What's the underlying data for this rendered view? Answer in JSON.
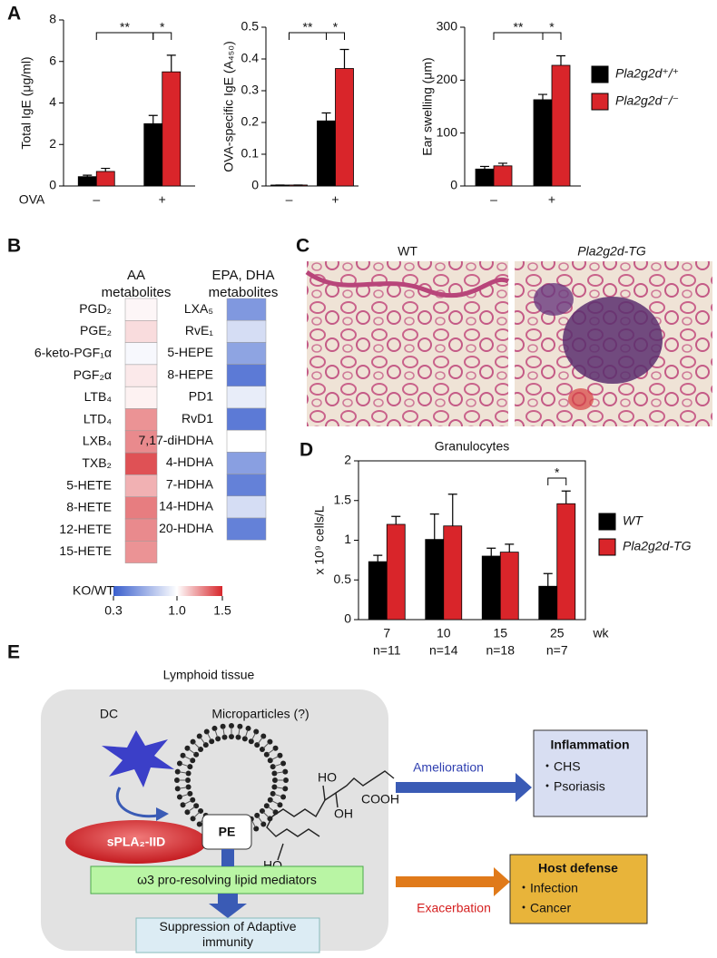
{
  "chart_data": [
    {
      "type": "bar",
      "ylabel": "Total IgE (μg/ml)",
      "xlabel": "OVA",
      "categories": [
        "–",
        "+"
      ],
      "series": [
        {
          "name": "Pla2g2d⁺/⁺",
          "color": "#000000",
          "values": [
            0.45,
            3.0
          ],
          "errors": [
            0.07,
            0.4
          ]
        },
        {
          "name": "Pla2g2d⁻/⁻",
          "color": "#d9252a",
          "values": [
            0.7,
            5.5
          ],
          "errors": [
            0.15,
            0.8
          ]
        }
      ],
      "ylim": [
        0,
        8
      ],
      "yticks": [
        0,
        2,
        4,
        6,
        8
      ],
      "significance": [
        "**",
        "*"
      ]
    },
    {
      "type": "bar",
      "ylabel": "OVA-specific IgE (A₄₅₀)",
      "categories": [
        "–",
        "+"
      ],
      "series": [
        {
          "name": "Pla2g2d⁺/⁺",
          "color": "#000000",
          "values": [
            0.003,
            0.205
          ],
          "errors": [
            0,
            0.025
          ]
        },
        {
          "name": "Pla2g2d⁻/⁻",
          "color": "#d9252a",
          "values": [
            0.003,
            0.37
          ],
          "errors": [
            0,
            0.06
          ]
        }
      ],
      "ylim": [
        0,
        0.5
      ],
      "yticks": [
        0,
        0.1,
        0.2,
        0.3,
        0.4,
        0.5
      ],
      "significance": [
        "**",
        "*"
      ]
    },
    {
      "type": "bar",
      "ylabel": "Ear swelling (μm)",
      "categories": [
        "–",
        "+"
      ],
      "series": [
        {
          "name": "Pla2g2d⁺/⁺",
          "color": "#000000",
          "values": [
            32,
            163
          ],
          "errors": [
            5,
            10
          ]
        },
        {
          "name": "Pla2g2d⁻/⁻",
          "color": "#d9252a",
          "values": [
            38,
            228
          ],
          "errors": [
            5,
            18
          ]
        }
      ],
      "ylim": [
        0,
        300
      ],
      "yticks": [
        0,
        100,
        200,
        300
      ],
      "significance": [
        "**",
        "*"
      ]
    },
    {
      "type": "heatmap",
      "title": "AA metabolites",
      "categories": [
        "PGD₂",
        "PGE₂",
        "6-keto-PGF₁α",
        "PGF₂α",
        "LTB₄",
        "LTD₄",
        "LXB₄",
        "TXB₂",
        "5-HETE",
        "8-HETE",
        "12-HETE",
        "15-HETE"
      ],
      "values": [
        1.02,
        1.08,
        0.97,
        1.05,
        1.03,
        1.25,
        1.27,
        1.4,
        1.18,
        1.3,
        1.27,
        1.25
      ],
      "colorbar": {
        "label": "KO/WT",
        "ticks": [
          0.3,
          {
            "value": 1,
            "label": "1.0"
          },
          1.5
        ],
        "colors": [
          "#3a5fcd",
          "#ffffff",
          "#d7262b"
        ]
      }
    },
    {
      "type": "heatmap",
      "title": "EPA, DHA metabolites",
      "categories": [
        "LXA₅",
        "RvE₁",
        "5-HEPE",
        "8-HEPE",
        "PD1",
        "RvD1",
        "7,17-diHDHA",
        "4-HDHA",
        "7-HDHA",
        "14-HDHA",
        "20-HDHA"
      ],
      "values": [
        0.55,
        0.85,
        0.6,
        0.42,
        0.92,
        0.42,
        1.0,
        0.58,
        0.45,
        0.85,
        0.45
      ]
    },
    {
      "type": "bar",
      "title": "Granulocytes",
      "ylabel": "x 10⁹ cells/L",
      "xlabel": "wk",
      "categories": [
        "7",
        "10",
        "15",
        "25"
      ],
      "sample_sizes": [
        "n=11",
        "n=14",
        "n=18",
        "n=7"
      ],
      "series": [
        {
          "name": "WT",
          "color": "#000000",
          "values": [
            0.73,
            1.01,
            0.8,
            0.42
          ],
          "errors": [
            0.08,
            0.32,
            0.1,
            0.16
          ]
        },
        {
          "name": "Pla2g2d-TG",
          "color": "#d9252a",
          "values": [
            1.2,
            1.18,
            0.85,
            1.46
          ],
          "errors": [
            0.1,
            0.4,
            0.1,
            0.16
          ]
        }
      ],
      "ylim": [
        0,
        2
      ],
      "yticks": [
        0,
        0.5,
        1,
        1.5,
        2
      ],
      "significance": [
        "*"
      ]
    }
  ],
  "figure": {
    "panels": [
      "A",
      "B",
      "C",
      "D",
      "E"
    ],
    "histology": {
      "labels": [
        "WT",
        "Pla2g2d-TG"
      ]
    },
    "diagram": {
      "region": "Lymphoid tissue",
      "cell": "DC",
      "particle": "Microparticles (?)",
      "lipid": "PE",
      "enzyme": "sPLA₂-IID",
      "mediators": "ω3 pro-resolving lipid mediators",
      "outcome": "Suppression of Adaptive immunity",
      "molecule": [
        "HO",
        "OH",
        "COOH",
        "HO"
      ],
      "effects": [
        {
          "arrow": "Amelioration",
          "title": "Inflammation",
          "items": [
            "・CHS",
            "・Psoriasis"
          ]
        },
        {
          "arrow": "Exacerbation",
          "title": "Host defense",
          "items": [
            "・Infection",
            "・Cancer"
          ]
        }
      ]
    }
  }
}
